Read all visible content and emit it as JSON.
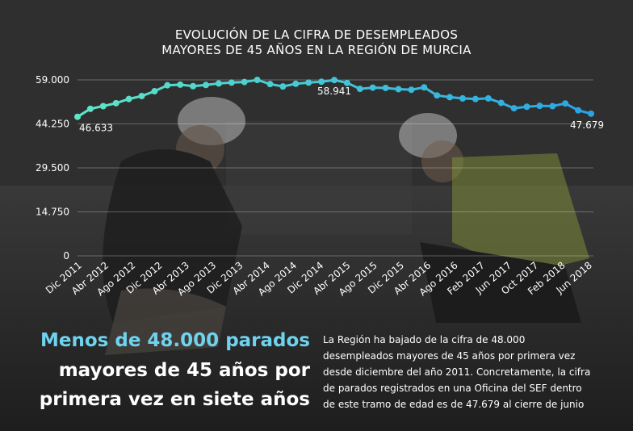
{
  "chart_data": {
    "type": "line",
    "title": "EVOLUCIÓN DE LA CIFRA DE DESEMPLEADOS",
    "subtitle": "MAYORES DE 45 AÑOS EN LA REGIÓN DE MURCIA",
    "xlabel": "",
    "ylabel": "",
    "ylim": [
      0,
      59000
    ],
    "yticks": [
      "59.000",
      "44.250",
      "29.500",
      "14.750",
      "0"
    ],
    "ytick_values": [
      59000,
      44250,
      29500,
      14750,
      0
    ],
    "xtick_labels": [
      "Dic 2011",
      "Abr 2012",
      "Ago 2012",
      "Dic 2012",
      "Abr 2013",
      "Ago 2013",
      "Dic 2013",
      "Abr 2014",
      "Ago 2014",
      "Dic 2014",
      "Abr 2015",
      "Ago 2015",
      "Dic 2015",
      "Abr 2016",
      "Ago 2016",
      "Feb 2017",
      "Jun 2017",
      "Oct 2017",
      "Feb 2018",
      "Jun 2018"
    ],
    "grid": true,
    "legend": "none",
    "color_start": "#5ee6c6",
    "color_end": "#2aa3e6",
    "series": [
      {
        "values": [
          46633,
          49300,
          50200,
          51200,
          52600,
          53600,
          55200,
          57200,
          57400,
          56900,
          57300,
          57800,
          58100,
          58300,
          59000,
          57600,
          56800,
          57700,
          58100,
          58400,
          58941,
          58000,
          56000,
          56400,
          56300,
          55900,
          55700,
          56500,
          53800,
          53200,
          52800,
          52600,
          52800,
          51300,
          49500,
          50000,
          50300,
          50200,
          51100,
          48800,
          47679
        ]
      }
    ],
    "data_labels": [
      {
        "index": 0,
        "text": "46.633"
      },
      {
        "index": 20,
        "text": "58.941"
      },
      {
        "index": 40,
        "text": "47.679"
      }
    ]
  },
  "headline": {
    "line1": "Menos de 48.000 parados",
    "line2": "mayores de 45 años por",
    "line3": "primera vez en siete años"
  },
  "body": {
    "lines": [
      "La Región ha bajado de la cifra de 48.000",
      "desempleados mayores de 45 años por primera vez",
      "desde diciembre del año 2011. Concretamente, la cifra",
      "de parados registrados en una Oficina del SEF dentro",
      "de este tramo de edad es de 47.679 al cierre de junio"
    ]
  }
}
